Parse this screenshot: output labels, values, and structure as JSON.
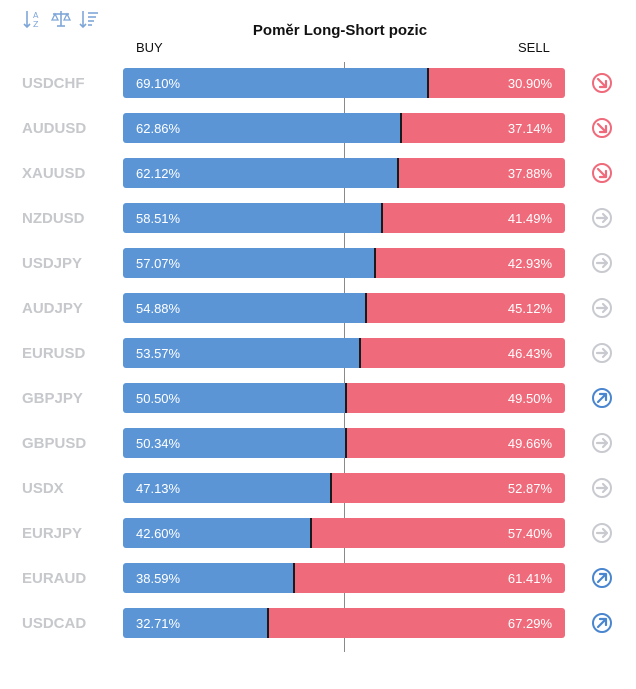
{
  "title": "Poměr Long-Short pozic",
  "buy_header": "BUY",
  "sell_header": "SELL",
  "toolbar": {
    "icons": [
      "sort-alpha-icon",
      "balance-scale-icon",
      "sort-amount-icon"
    ]
  },
  "colors": {
    "buy": "#5b95d6",
    "sell": "#ef6a7a",
    "trend_down": "#ef6a7a",
    "trend_neutral": "#c8cad0",
    "trend_up": "#4a86cf"
  },
  "chart_data": {
    "type": "bar",
    "stacked": true,
    "orientation": "horizontal",
    "title": "Poměr Long-Short pozic",
    "categories": [
      "USDCHF",
      "AUDUSD",
      "XAUUSD",
      "NZDUSD",
      "USDJPY",
      "AUDJPY",
      "EURUSD",
      "GBPJPY",
      "GBPUSD",
      "USDX",
      "EURJPY",
      "EURAUD",
      "USDCAD"
    ],
    "series": [
      {
        "name": "BUY",
        "values": [
          69.1,
          62.86,
          62.12,
          58.51,
          57.07,
          54.88,
          53.57,
          50.5,
          50.34,
          47.13,
          42.6,
          38.59,
          32.71
        ]
      },
      {
        "name": "SELL",
        "values": [
          30.9,
          37.14,
          37.88,
          41.49,
          42.93,
          45.12,
          46.43,
          49.5,
          49.66,
          52.87,
          57.4,
          61.41,
          67.29
        ]
      }
    ],
    "buy_labels": [
      "69.10%",
      "62.86%",
      "62.12%",
      "58.51%",
      "57.07%",
      "54.88%",
      "53.57%",
      "50.50%",
      "50.34%",
      "47.13%",
      "42.60%",
      "38.59%",
      "32.71%"
    ],
    "sell_labels": [
      "30.90%",
      "37.14%",
      "37.88%",
      "41.49%",
      "42.93%",
      "45.12%",
      "46.43%",
      "49.50%",
      "49.66%",
      "52.87%",
      "57.40%",
      "61.41%",
      "67.29%"
    ],
    "trends": [
      "down",
      "down",
      "down",
      "neutral",
      "neutral",
      "neutral",
      "neutral",
      "up",
      "neutral",
      "neutral",
      "neutral",
      "up",
      "up"
    ],
    "xlim": [
      0,
      100
    ]
  }
}
